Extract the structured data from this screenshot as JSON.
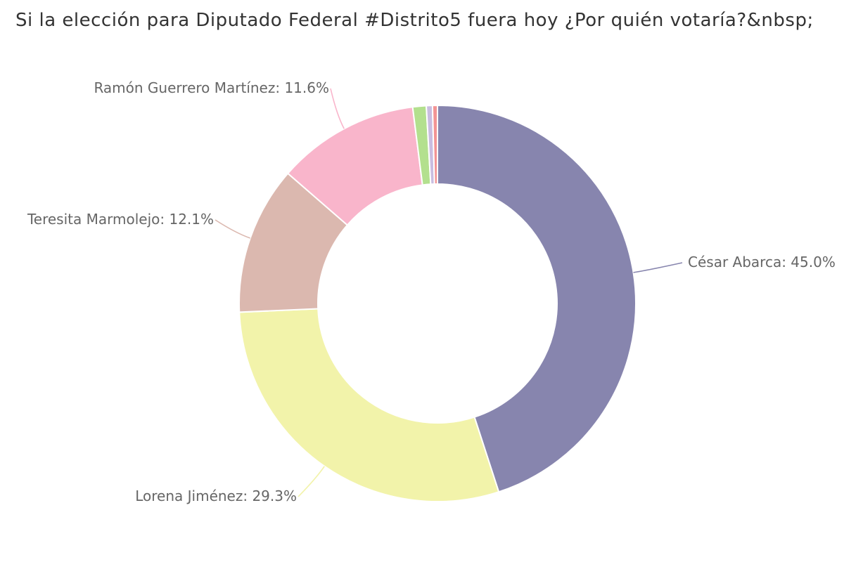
{
  "chart_data": {
    "type": "pie",
    "variant": "donut",
    "title": "Si la elección para Diputado Federal #Distrito5 fuera hoy ¿Por quién votaría?&nbsp;",
    "label_format": "{name}: {value}%",
    "slices": [
      {
        "name": "César Abarca",
        "value": 45.0,
        "color": "#8785ae",
        "label": "César Abarca: 45.0%"
      },
      {
        "name": "Lorena Jiménez",
        "value": 29.3,
        "color": "#f2f3aa",
        "label": "Lorena Jiménez: 29.3%"
      },
      {
        "name": "Teresita Marmolejo",
        "value": 12.1,
        "color": "#dbb8af",
        "label": "Teresita Marmolejo: 12.1%"
      },
      {
        "name": "Ramón Guerrero Martínez",
        "value": 11.6,
        "color": "#f9b5cb",
        "label": "Ramón Guerrero Martínez: 11.6%"
      },
      {
        "name": "",
        "value": 1.1,
        "color": "#b3e08e",
        "label": ""
      },
      {
        "name": "",
        "value": 0.5,
        "color": "#c9bde0",
        "label": ""
      },
      {
        "name": "",
        "value": 0.4,
        "color": "#f29494",
        "label": ""
      }
    ]
  }
}
